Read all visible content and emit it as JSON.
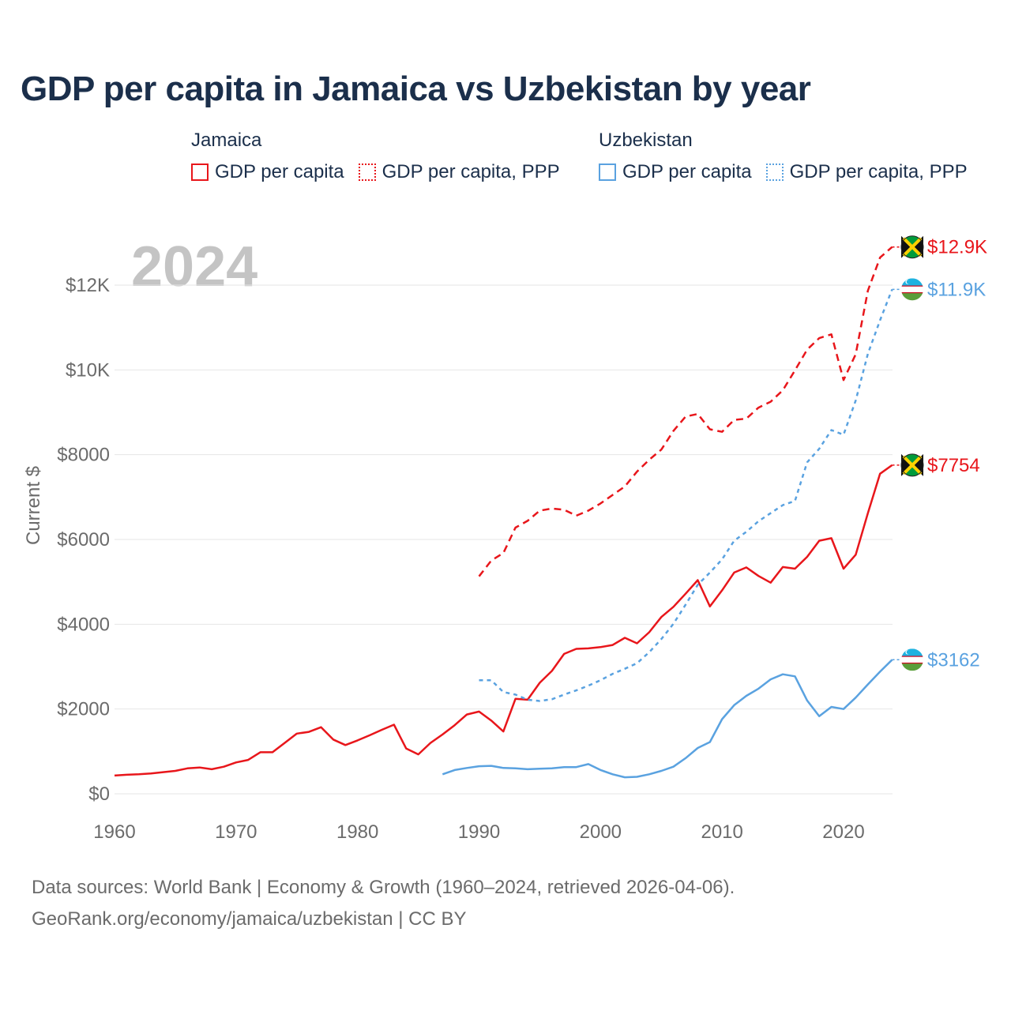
{
  "title": "GDP per capita in Jamaica vs Uzbekistan by year",
  "legend": {
    "groups": [
      {
        "label": "Jamaica",
        "color": "#e8161b",
        "entries": [
          "GDP per capita",
          "GDP per capita, PPP"
        ]
      },
      {
        "label": "Uzbekistan",
        "color": "#5aa2e0",
        "entries": [
          "GDP per capita",
          "GDP per capita, PPP"
        ]
      }
    ]
  },
  "year_label": "2024",
  "footer": {
    "line1": "Data sources: World Bank | Economy & Growth (1960–2024, retrieved 2026-04-06).",
    "line2": "GeoRank.org/economy/jamaica/uzbekistan | CC BY"
  },
  "chart_data": {
    "type": "line",
    "title": "GDP per capita in Jamaica vs Uzbekistan by year",
    "xlabel": "",
    "ylabel": "Current $",
    "xlim": [
      1960,
      2024
    ],
    "ylim": [
      0,
      12500
    ],
    "x_ticks": [
      1960,
      1970,
      1980,
      1990,
      2000,
      2010,
      2020
    ],
    "y_ticks": [
      {
        "value": 0,
        "label": "$0"
      },
      {
        "value": 2000,
        "label": "$2000"
      },
      {
        "value": 4000,
        "label": "$4000"
      },
      {
        "value": 6000,
        "label": "$6000"
      },
      {
        "value": 8000,
        "label": "$8000"
      },
      {
        "value": 10000,
        "label": "$10K"
      },
      {
        "value": 12000,
        "label": "$12K"
      }
    ],
    "grid": true,
    "series": [
      {
        "name": "GDP per capita",
        "country": "Jamaica",
        "color": "#e8161b",
        "style": "solid",
        "end_label": "$7754",
        "flag": "jamaica",
        "x": [
          1960,
          1961,
          1962,
          1963,
          1964,
          1965,
          1966,
          1967,
          1968,
          1969,
          1970,
          1971,
          1972,
          1973,
          1974,
          1975,
          1976,
          1977,
          1978,
          1979,
          1980,
          1981,
          1982,
          1983,
          1984,
          1985,
          1986,
          1987,
          1988,
          1989,
          1990,
          1991,
          1992,
          1993,
          1994,
          1995,
          1996,
          1997,
          1998,
          1999,
          2000,
          2001,
          2002,
          2003,
          2004,
          2005,
          2006,
          2007,
          2008,
          2009,
          2010,
          2011,
          2012,
          2013,
          2014,
          2015,
          2016,
          2017,
          2018,
          2019,
          2020,
          2021,
          2022,
          2023,
          2024
        ],
        "values": [
          430,
          450,
          460,
          480,
          510,
          540,
          600,
          620,
          580,
          640,
          740,
          800,
          980,
          980,
          1200,
          1420,
          1460,
          1570,
          1280,
          1150,
          1260,
          1380,
          1510,
          1630,
          1070,
          930,
          1200,
          1400,
          1620,
          1870,
          1940,
          1730,
          1470,
          2240,
          2220,
          2620,
          2900,
          3300,
          3420,
          3430,
          3460,
          3510,
          3680,
          3550,
          3810,
          4170,
          4410,
          4720,
          5040,
          4420,
          4800,
          5220,
          5340,
          5140,
          4980,
          5350,
          5310,
          5590,
          5970,
          6030,
          5310,
          5640,
          6620,
          7550,
          7754
        ]
      },
      {
        "name": "GDP per capita, PPP",
        "country": "Jamaica",
        "color": "#e8161b",
        "style": "dashed",
        "end_label": "$12.9K",
        "flag": "jamaica",
        "x": [
          1990,
          1991,
          1992,
          1993,
          1994,
          1995,
          1996,
          1997,
          1998,
          1999,
          2000,
          2001,
          2002,
          2003,
          2004,
          2005,
          2006,
          2007,
          2008,
          2009,
          2010,
          2011,
          2012,
          2013,
          2014,
          2015,
          2016,
          2017,
          2018,
          2019,
          2020,
          2021,
          2022,
          2023,
          2024
        ],
        "values": [
          5130,
          5500,
          5680,
          6280,
          6440,
          6680,
          6730,
          6700,
          6560,
          6680,
          6850,
          7050,
          7250,
          7600,
          7880,
          8120,
          8560,
          8900,
          8960,
          8600,
          8540,
          8820,
          8850,
          9110,
          9250,
          9520,
          9990,
          10480,
          10750,
          10840,
          9760,
          10370,
          11870,
          12650,
          12900
        ]
      },
      {
        "name": "GDP per capita",
        "country": "Uzbekistan",
        "color": "#5aa2e0",
        "style": "solid",
        "end_label": "$3162",
        "flag": "uzbekistan",
        "x": [
          1987,
          1988,
          1989,
          1990,
          1991,
          1992,
          1993,
          1994,
          1995,
          1996,
          1997,
          1998,
          1999,
          2000,
          2001,
          2002,
          2003,
          2004,
          2005,
          2006,
          2007,
          2008,
          2009,
          2010,
          2011,
          2012,
          2013,
          2014,
          2015,
          2016,
          2017,
          2018,
          2019,
          2020,
          2021,
          2022,
          2023,
          2024
        ],
        "values": [
          460,
          560,
          610,
          650,
          660,
          610,
          600,
          580,
          590,
          600,
          630,
          630,
          700,
          560,
          460,
          390,
          400,
          460,
          540,
          640,
          840,
          1080,
          1220,
          1760,
          2090,
          2310,
          2480,
          2700,
          2820,
          2770,
          2200,
          1830,
          2050,
          2000,
          2270,
          2580,
          2880,
          3162
        ]
      },
      {
        "name": "GDP per capita, PPP",
        "country": "Uzbekistan",
        "color": "#5aa2e0",
        "style": "dotted",
        "end_label": "$11.9K",
        "flag": "uzbekistan",
        "x": [
          1990,
          1991,
          1992,
          1993,
          1994,
          1995,
          1996,
          1997,
          1998,
          1999,
          2000,
          2001,
          2002,
          2003,
          2004,
          2005,
          2006,
          2007,
          2008,
          2009,
          2010,
          2011,
          2012,
          2013,
          2014,
          2015,
          2016,
          2017,
          2018,
          2019,
          2020,
          2021,
          2022,
          2023,
          2024
        ],
        "values": [
          2680,
          2680,
          2400,
          2340,
          2220,
          2190,
          2230,
          2340,
          2440,
          2550,
          2680,
          2830,
          2950,
          3080,
          3340,
          3650,
          4010,
          4460,
          4930,
          5220,
          5530,
          5970,
          6180,
          6430,
          6620,
          6810,
          6910,
          7820,
          8140,
          8580,
          8470,
          9280,
          10380,
          11170,
          11900
        ]
      }
    ]
  }
}
